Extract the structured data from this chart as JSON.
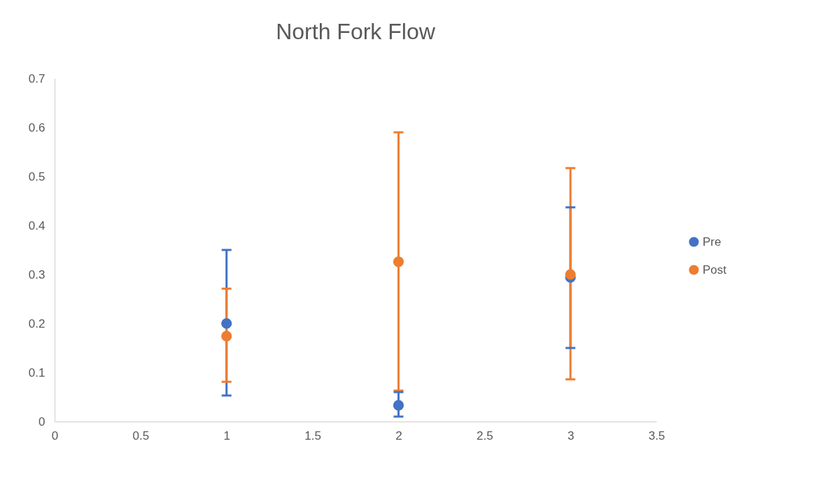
{
  "chart_data": {
    "type": "scatter",
    "title": "North Fork Flow",
    "x": [
      1,
      2,
      3
    ],
    "xlim": [
      0,
      3.5
    ],
    "xticks": [
      0,
      0.5,
      1,
      1.5,
      2,
      2.5,
      3,
      3.5
    ],
    "ylim": [
      0,
      0.7
    ],
    "yticks": [
      0,
      0.1,
      0.2,
      0.3,
      0.4,
      0.5,
      0.6,
      0.7
    ],
    "grid": false,
    "legend": "right",
    "marker": "circle",
    "series": [
      {
        "name": "Pre",
        "color": "#4472c4",
        "values": [
          0.2,
          0.033,
          0.294
        ],
        "errors": [
          [
            0.053,
            0.35
          ],
          [
            0.01,
            0.06
          ],
          [
            0.15,
            0.437
          ]
        ]
      },
      {
        "name": "Post",
        "color": "#ed7d31",
        "values": [
          0.174,
          0.326,
          0.3
        ],
        "errors": [
          [
            0.081,
            0.271
          ],
          [
            0.063,
            0.59
          ],
          [
            0.086,
            0.517
          ]
        ]
      }
    ]
  }
}
